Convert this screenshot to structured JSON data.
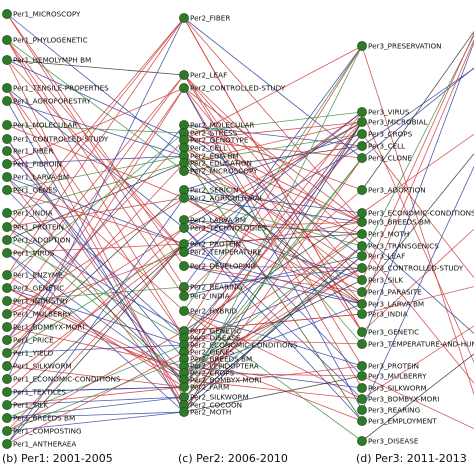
{
  "columns": [
    {
      "caption": "(b) Per1: 2001-2005",
      "nodes": [
        "Per1_MICROSCOPY",
        "Per1_PHYLOGENETIC",
        "Per1_HEMOLYMPH BM",
        "Per1_TENSILE-PROPERTIES",
        "Per1_AGROFORESTRY",
        "Per1_MOLECULAR",
        "Per1_CONTROLLED-STUDY",
        "Per1_FIBER",
        "Per1_FIBROIN",
        "Per1_LARVA BM",
        "Per1_GENES",
        "Per1_INDIA",
        "Per1_PROTEIN",
        "Per1_ADOPTION",
        "Per1_VIRUS",
        "Per1_ENZYME",
        "Per1_GENETIC",
        "Per1_INDUSTRY",
        "Per1_MULBERRY",
        "Per1_BOMBYX-MORI",
        "Per1_PRICE",
        "Per1_YIELD",
        "Per1_SILKWORM",
        "Per1_ECONOMIC-CONDITIONS",
        "Per1_TEXTILES",
        "Per1_SILK",
        "Per1_BREEDS BM",
        "Per1_COMPOSTING",
        "Per1_ANTHERAEA"
      ]
    },
    {
      "caption": "(c) Per2: 2006-2010",
      "nodes": [
        "Per2_FIBER",
        "Per2_LEAF",
        "Per2_CONTROLLED-STUDY",
        "Per2_MOLECULAR",
        "Per2_STRESS",
        "Per2_GENOTYPE",
        "Per2_CELL",
        "Per2_EGG BM",
        "Per2_EDUCATION",
        "Per2_MICROSCOPY",
        "Per2_SERICIN",
        "Per2_AGRICULTURAL",
        "Per2_LARVA BM",
        "Per2_TECHNOLOGIES",
        "Per2_PROTEIN",
        "Per2_TEMPERATURE",
        "Per2_DEVELOPING",
        "Per2_REARING",
        "Per2_INDIA",
        "Per2_HYBRID",
        "Per2_GENETIC",
        "Per2_DISEASE",
        "Per2_ECONOMIC-CONDITIONS",
        "Per2_GENES",
        "Per2_BREEDS BM",
        "Per2_LEPIDOPTERA",
        "Per2_CROPS",
        "Per2_BOMBYX-MORI",
        "Per2_FARM",
        "Per2_SILKWORM",
        "Per2_COCOON",
        "Per2_MOTH"
      ]
    },
    {
      "caption": "(d) Per3: 2011-2013",
      "nodes": [
        "Per3_PRESERVATION",
        "Per3_VIRUS",
        "Per3_MICROBIAL",
        "Per3_CROPS",
        "Per3_CELL",
        "Per3_CLONE",
        "Per3_ADOPTION",
        "Per3_ECONOMIC-CONDITIONS",
        "Per3_BREEDS BM",
        "Per3_MOTH",
        "Per3_TRANSGENICS",
        "Per3_LEAF",
        "Per3_CONTROLLED-STUDY",
        "Per3_SILK",
        "Per3_PARASITE",
        "Per3_LARVA BM",
        "Per3_INDIA",
        "Per3_GENETIC",
        "Per3_TEMPERATURE-AND-HUM",
        "Per3_PROTEIN",
        "Per3_MULBERRY",
        "Per3_SILKWORM",
        "Per3_BOMBYX-MORI",
        "Per3_REARING",
        "Per3_EMPLOYMENT",
        "Per3_DISEASE"
      ]
    }
  ],
  "edge_colors": {
    "red": "#cc3b3b",
    "blue": "#2f3fa0",
    "green": "#3d8f3d",
    "black": "#333333",
    "node_fill": "#2f7a2a"
  }
}
